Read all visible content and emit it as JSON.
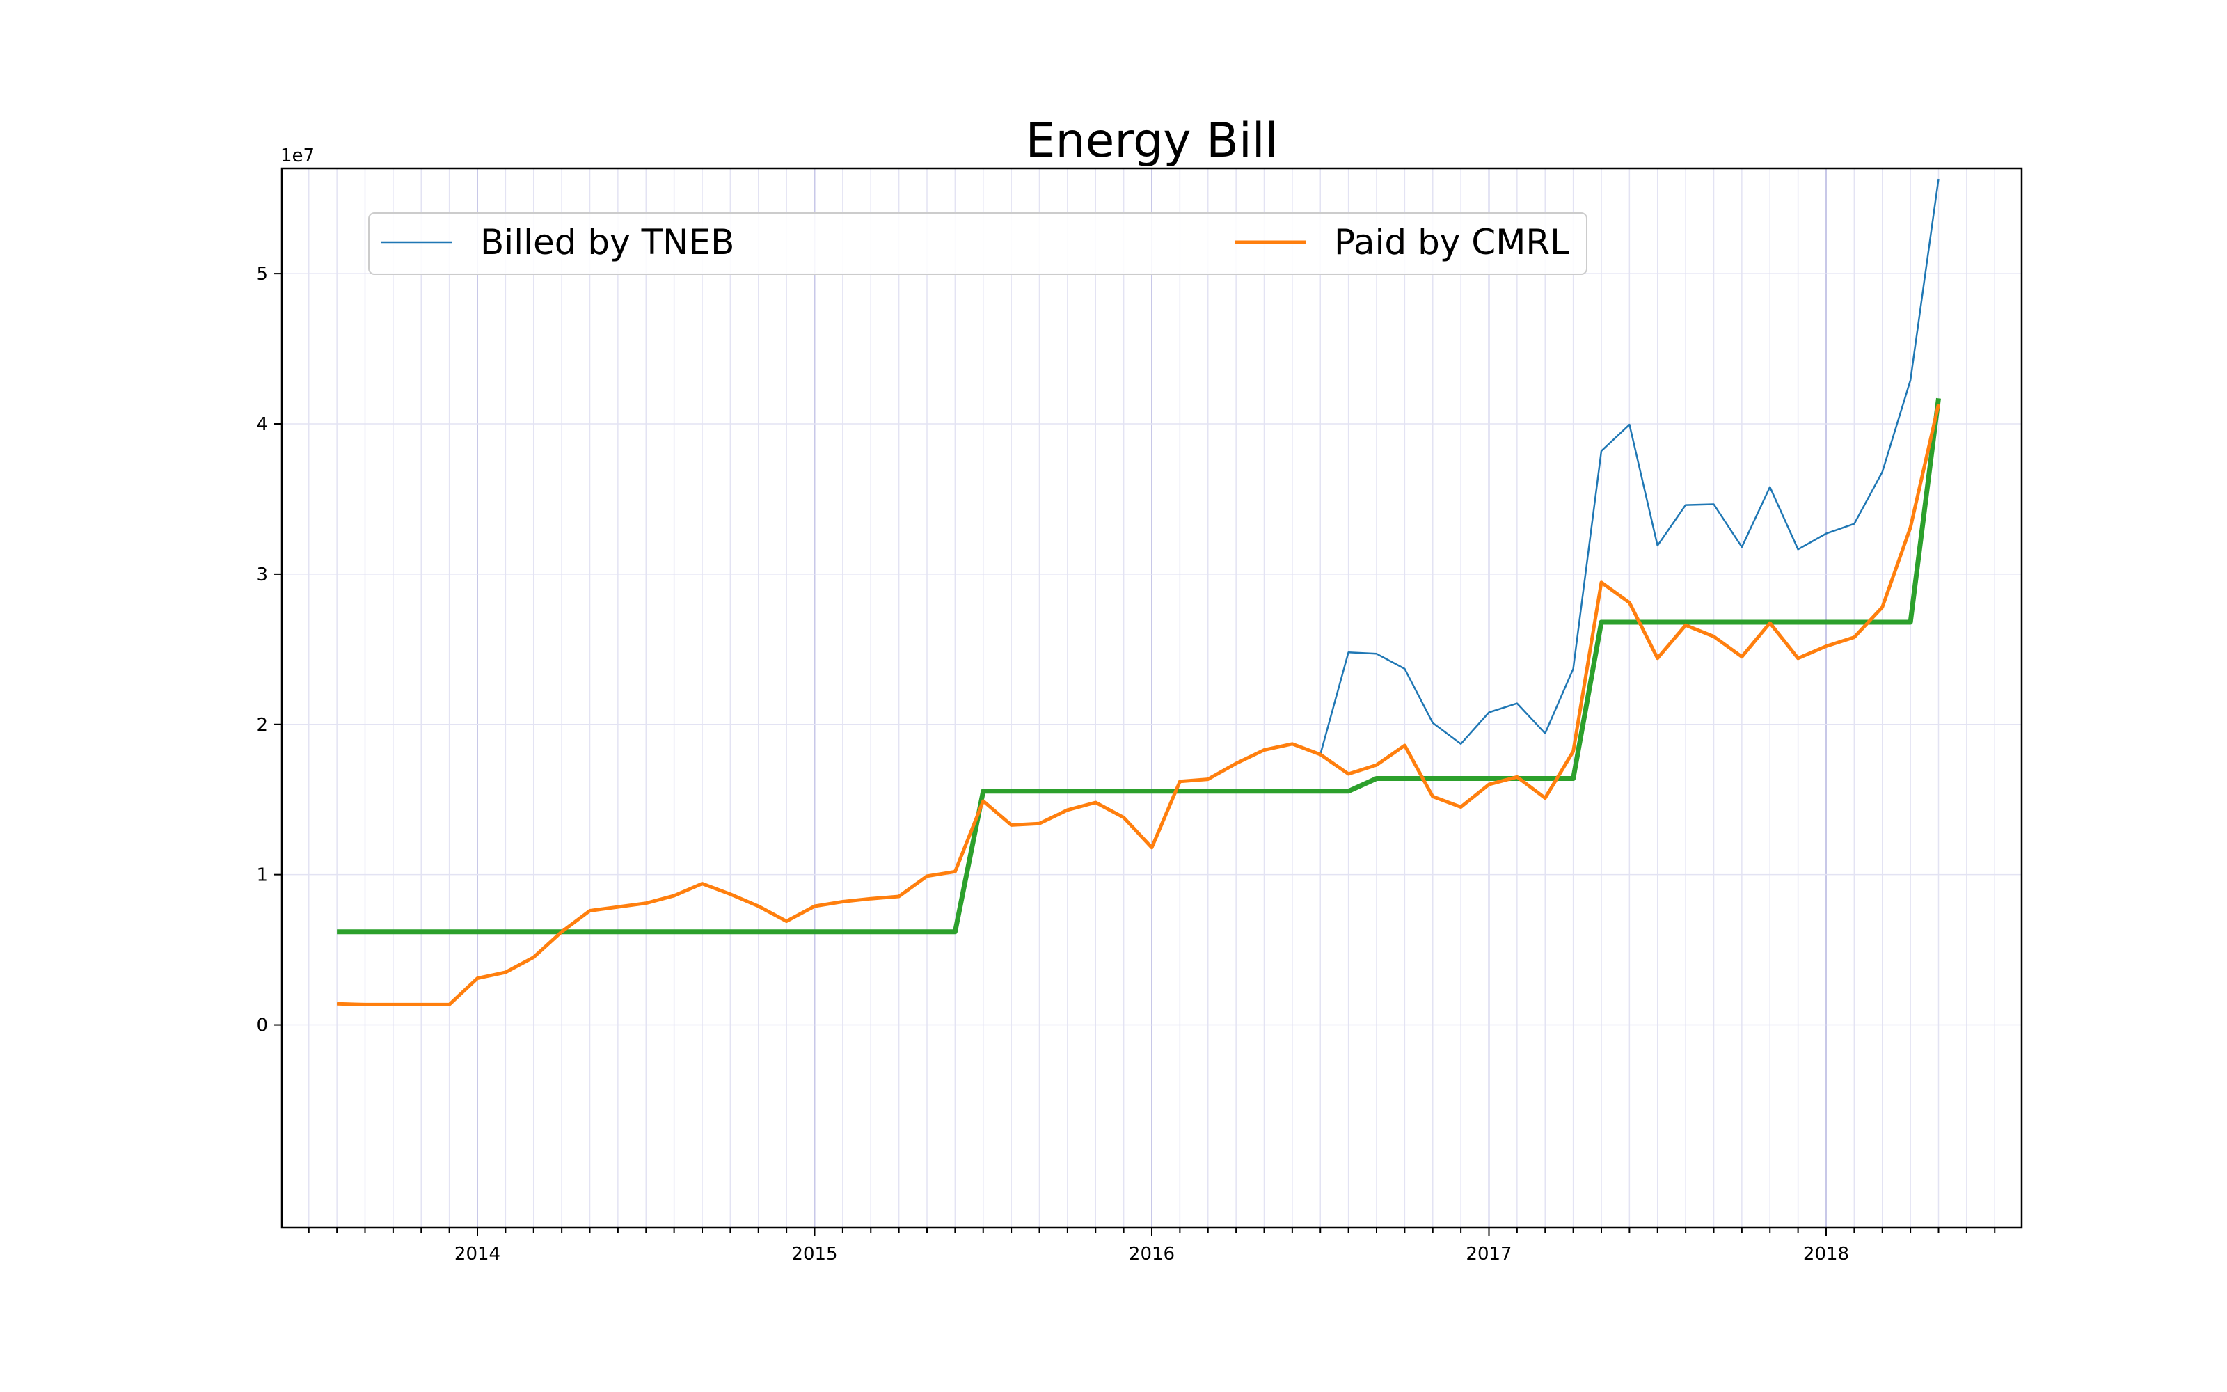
{
  "chart_data": {
    "type": "line",
    "title": "Energy Bill",
    "xlabel": "",
    "ylabel": "",
    "y_offset_label": "1e7",
    "ylim": [
      -1.35,
      5.7
    ],
    "xlim_years": [
      2013.42,
      2018.58
    ],
    "x_tick_labels": [
      "2014",
      "2015",
      "2016",
      "2017",
      "2018"
    ],
    "y_tick_labels": [
      "0",
      "1",
      "2",
      "3",
      "4",
      "5"
    ],
    "grid": true,
    "legend_placement": "top",
    "colors": {
      "billed": "#1f77b4",
      "paid": "#ff7f0e",
      "step": "#2ca02c"
    },
    "x": [
      "2013-08",
      "2013-09",
      "2013-10",
      "2013-11",
      "2013-12",
      "2014-01",
      "2014-02",
      "2014-03",
      "2014-04",
      "2014-05",
      "2014-06",
      "2014-07",
      "2014-08",
      "2014-09",
      "2014-10",
      "2014-11",
      "2014-12",
      "2015-01",
      "2015-02",
      "2015-03",
      "2015-04",
      "2015-05",
      "2015-06",
      "2015-07",
      "2015-08",
      "2015-09",
      "2015-10",
      "2015-11",
      "2015-12",
      "2016-01",
      "2016-02",
      "2016-03",
      "2016-04",
      "2016-05",
      "2016-06",
      "2016-07",
      "2016-08",
      "2016-09",
      "2016-10",
      "2016-11",
      "2016-12",
      "2017-01",
      "2017-02",
      "2017-03",
      "2017-04",
      "2017-05",
      "2017-06",
      "2017-07",
      "2017-08",
      "2017-09",
      "2017-10",
      "2017-11",
      "2017-12",
      "2018-01",
      "2018-02",
      "2018-03",
      "2018-04",
      "2018-05"
    ],
    "series": [
      {
        "name": "Billed by TNEB",
        "values": [
          0.14,
          0.135,
          0.135,
          0.135,
          0.135,
          0.31,
          0.35,
          0.45,
          0.62,
          0.76,
          0.785,
          0.81,
          0.86,
          0.94,
          0.87,
          0.79,
          0.69,
          0.79,
          0.82,
          0.84,
          0.855,
          0.99,
          1.02,
          1.49,
          1.33,
          1.34,
          1.43,
          1.48,
          1.38,
          1.18,
          1.62,
          1.635,
          1.74,
          1.83,
          1.87,
          1.8,
          2.48,
          2.47,
          2.37,
          2.01,
          1.87,
          2.08,
          2.14,
          1.94,
          2.37,
          3.82,
          3.995,
          3.19,
          3.46,
          3.465,
          3.18,
          3.58,
          3.165,
          3.27,
          3.335,
          3.68,
          4.29,
          5.63
        ]
      },
      {
        "name": "Paid by CMRL",
        "values": [
          0.14,
          0.135,
          0.135,
          0.135,
          0.135,
          0.31,
          0.35,
          0.45,
          0.62,
          0.76,
          0.785,
          0.81,
          0.86,
          0.94,
          0.87,
          0.79,
          0.69,
          0.79,
          0.82,
          0.84,
          0.855,
          0.99,
          1.02,
          1.49,
          1.33,
          1.34,
          1.43,
          1.48,
          1.38,
          1.18,
          1.62,
          1.635,
          1.74,
          1.83,
          1.87,
          1.8,
          1.67,
          1.73,
          1.86,
          1.52,
          1.45,
          1.6,
          1.65,
          1.51,
          1.82,
          2.945,
          2.81,
          2.44,
          2.66,
          2.585,
          2.45,
          2.675,
          2.44,
          2.52,
          2.58,
          2.78,
          3.31,
          4.13
        ]
      },
      {
        "name": "",
        "step_x": [
          "2013-08",
          "2015-06",
          "2015-07",
          "2016-08",
          "2016-09",
          "2017-04",
          "2017-05",
          "2018-04",
          "2018-05"
        ],
        "step_y": [
          0.62,
          0.62,
          1.555,
          1.555,
          1.64,
          1.64,
          2.68,
          2.68,
          4.17
        ]
      }
    ]
  }
}
